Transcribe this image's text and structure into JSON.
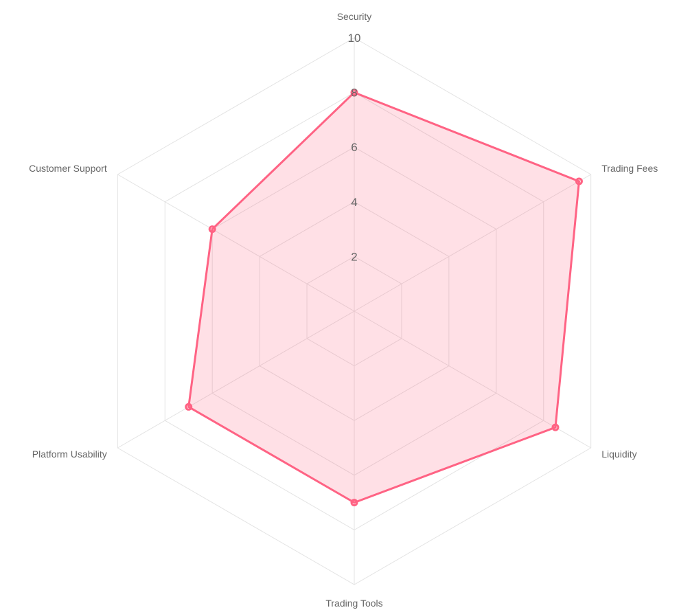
{
  "chart_data": {
    "type": "radar",
    "categories": [
      "Security",
      "Trading Fees",
      "Liquidity",
      "Trading Tools",
      "Platform Usability",
      "Customer Support"
    ],
    "series": [
      {
        "values": [
          8,
          9.5,
          8.5,
          7,
          7,
          6
        ],
        "color": "#ff6384",
        "fill": "rgba(255, 99, 132, 0.2)"
      }
    ],
    "rlim": [
      0,
      10
    ],
    "ticks": [
      "2",
      "4",
      "6",
      "8",
      "10"
    ],
    "grid": true,
    "grid_color": "#e3e3e3",
    "legend": false
  }
}
